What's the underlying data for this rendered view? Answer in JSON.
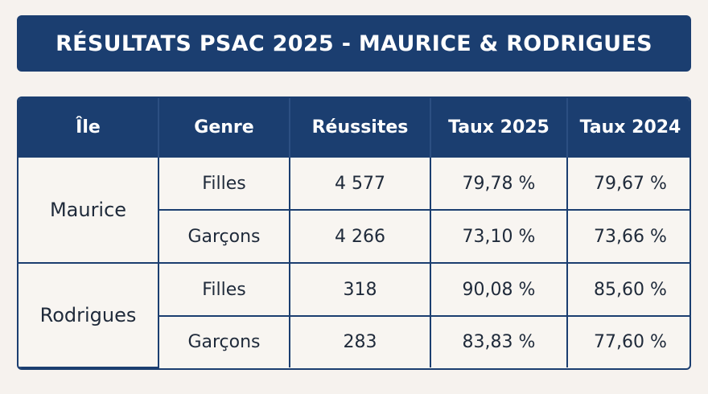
{
  "title": "RÉSULTATS PSAC 2025 - MAURICE & RODRIGUES",
  "headers": [
    "Île",
    "Genre",
    "Réussites",
    "Taux 2025",
    "Taux 2024"
  ],
  "groups": [
    {
      "island": "Maurice",
      "rows": [
        {
          "genre": "Filles",
          "reussites": "4 577",
          "taux2025": "79,78 %",
          "taux2024": "79,67 %"
        },
        {
          "genre": "Garçons",
          "reussites": "4 266",
          "taux2025": "73,10 %",
          "taux2024": "73,66 %"
        }
      ]
    },
    {
      "island": "Rodrigues",
      "rows": [
        {
          "genre": "Filles",
          "reussites": "318",
          "taux2025": "90,08 %",
          "taux2024": "85,60 %"
        },
        {
          "genre": "Garçons",
          "reussites": "283",
          "taux2025": "83,83 %",
          "taux2024": "77,60 %"
        }
      ]
    }
  ],
  "colors": {
    "header_bg": "#1b3e70",
    "page_bg": "#f6f2ee"
  }
}
